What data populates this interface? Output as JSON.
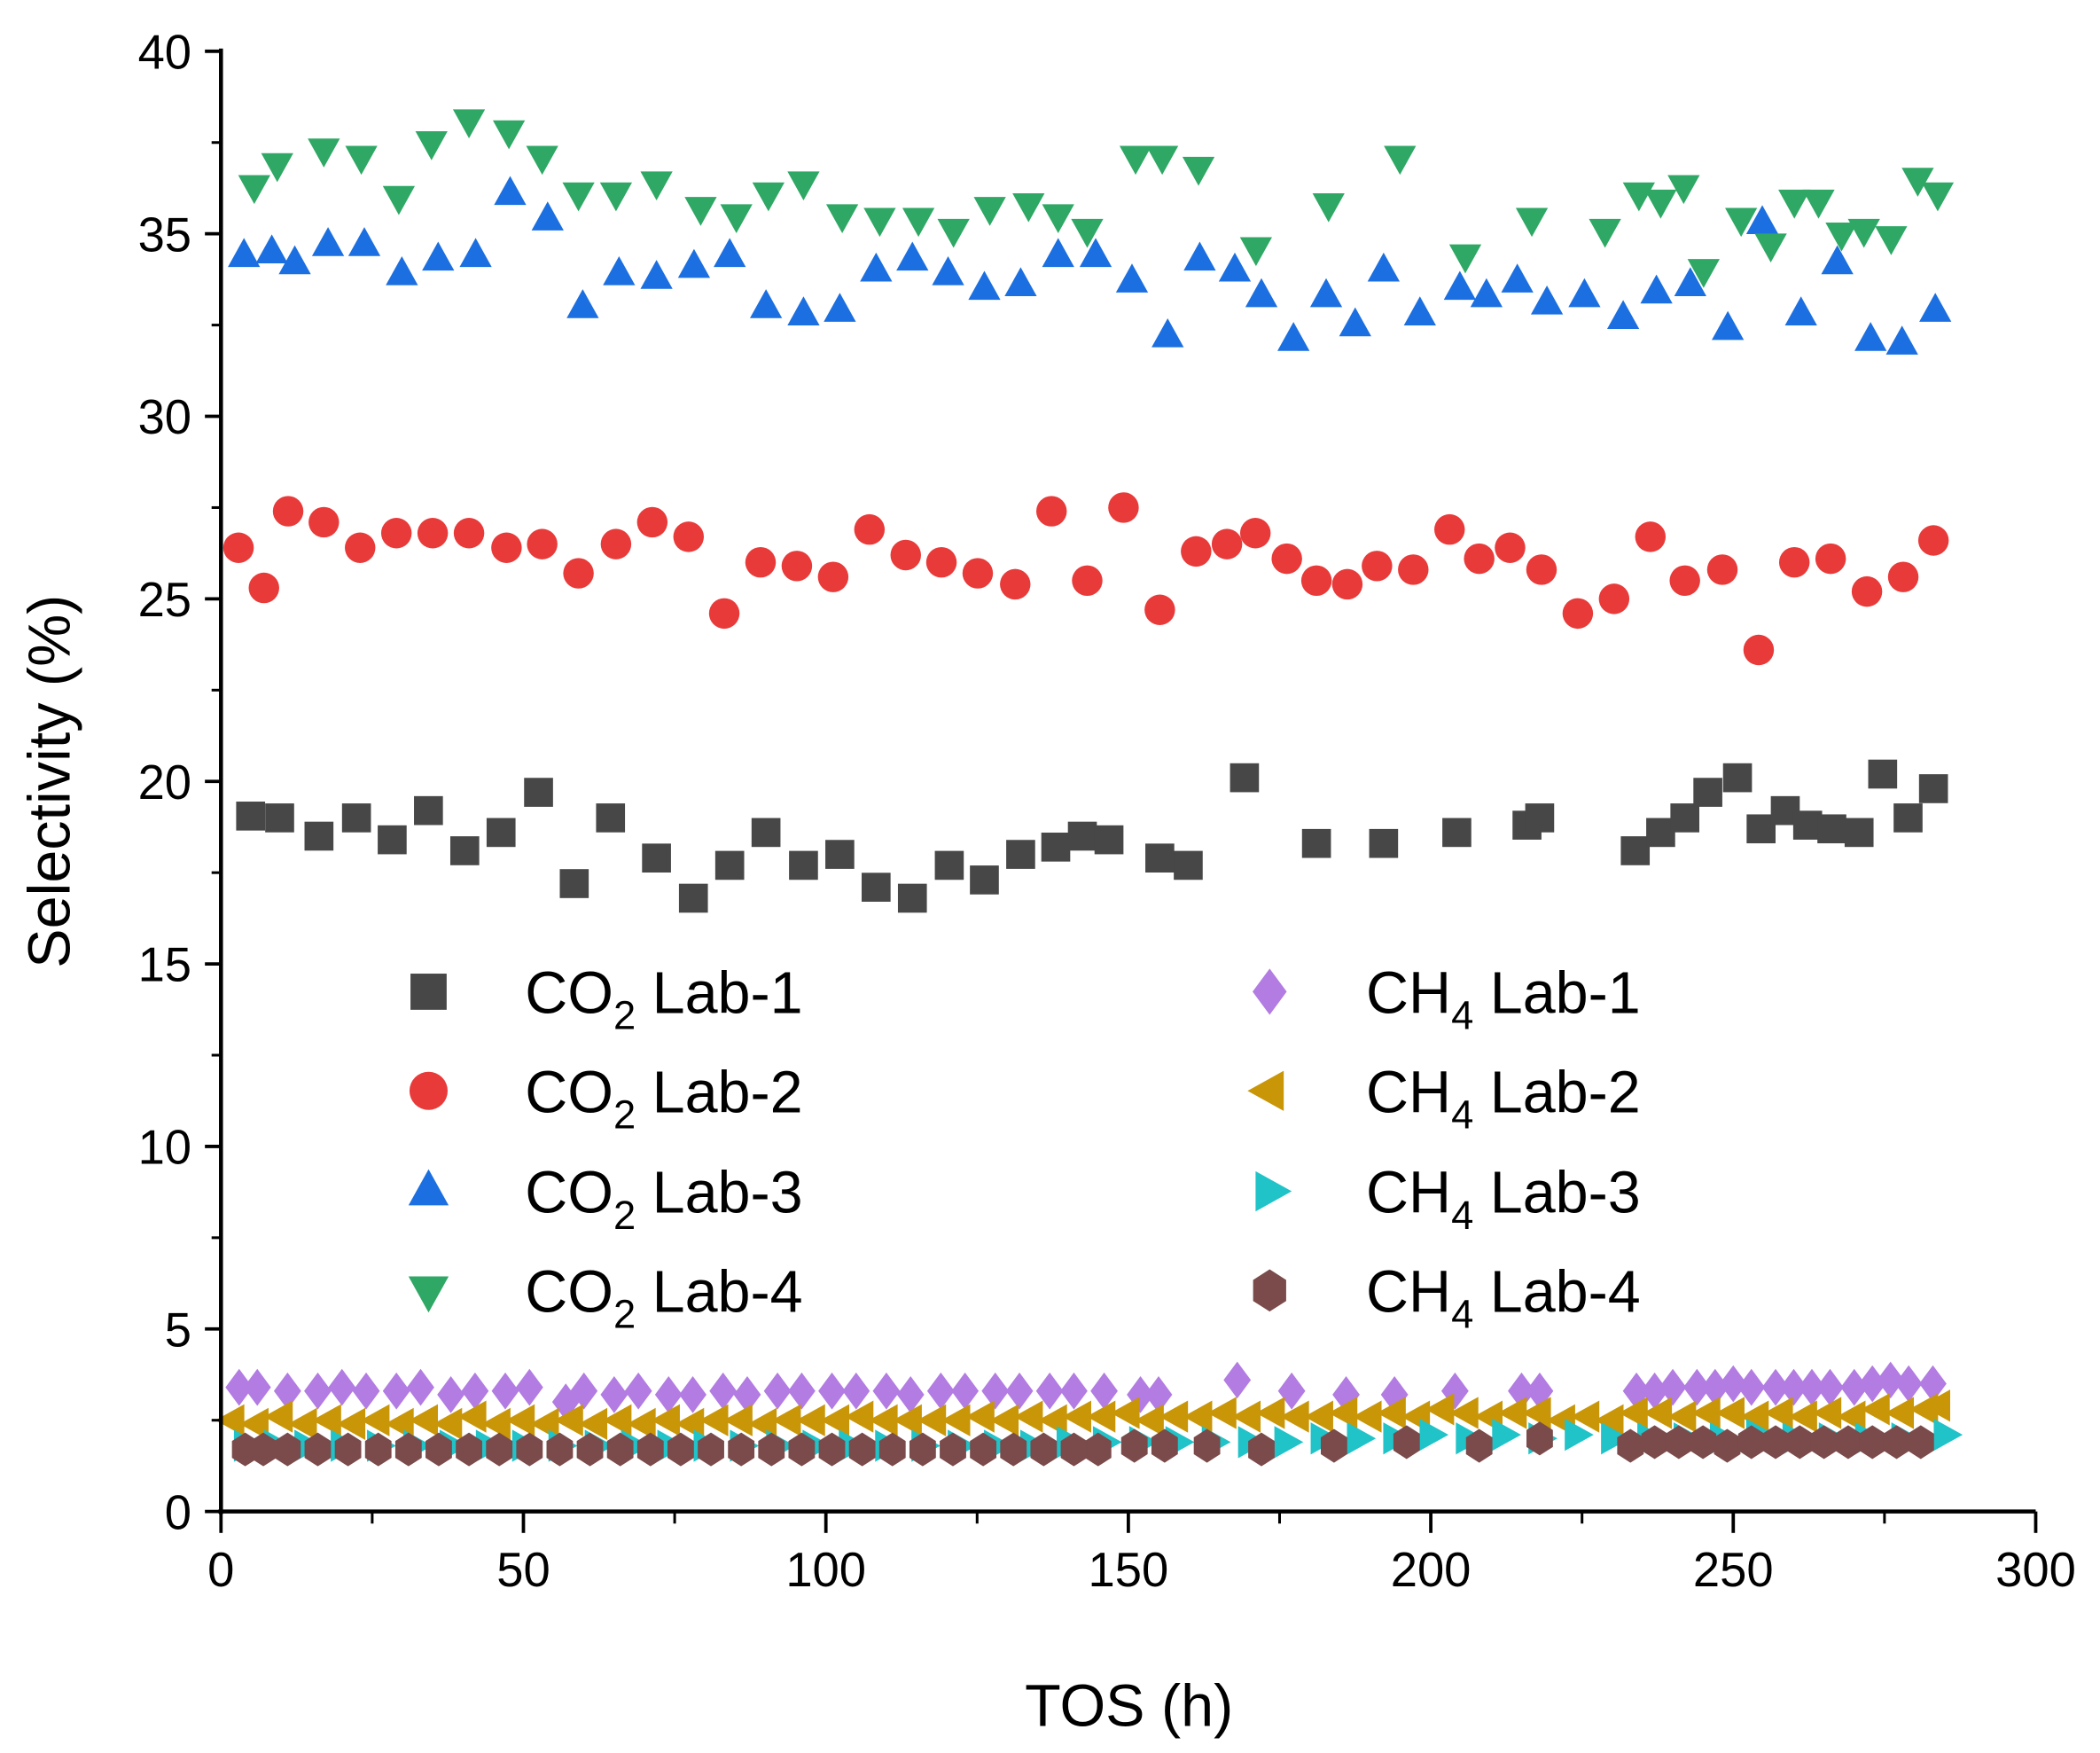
{
  "chart_data": {
    "type": "scatter",
    "title": "",
    "xlabel": "TOS (h)",
    "ylabel": "Selectivity (%)",
    "xlim": [
      0,
      300
    ],
    "ylim": [
      0,
      40
    ],
    "xticks": [
      "0",
      "50",
      "100",
      "150",
      "200",
      "250",
      "300"
    ],
    "yticks": [
      "0",
      "5",
      "10",
      "15",
      "20",
      "25",
      "30",
      "35",
      "40"
    ],
    "grid": false,
    "legend_placement": "center (two columns inside plot)",
    "series": [
      {
        "name": "CO2 Lab-1",
        "label_main": "CO",
        "label_sub": "2",
        "label_tail": " Lab-1",
        "marker": "square",
        "color": "#474747",
        "x": [
          4.9,
          9.7,
          16.2,
          22.4,
          28.3,
          34.3,
          40.3,
          46.3,
          52.5,
          58.4,
          64.4,
          72,
          78.1,
          84.1,
          90.1,
          96.3,
          102.3,
          108.3,
          114.3,
          120.4,
          126.2,
          132.2,
          138,
          142.4,
          146.8,
          155.2,
          159.9,
          169.2,
          181.1,
          192.2,
          204.3,
          215.9,
          218,
          233.8,
          238,
          242,
          245.8,
          250.7,
          254.6,
          258.6,
          262.3,
          266.3,
          270.8,
          274.7,
          278.9,
          283.1
        ],
        "y": [
          19.05,
          19.0,
          18.5,
          19.0,
          18.4,
          19.2,
          18.1,
          18.6,
          19.7,
          17.2,
          19.0,
          17.9,
          16.8,
          17.7,
          18.6,
          17.7,
          18.0,
          17.1,
          16.8,
          17.7,
          17.3,
          18.0,
          18.2,
          18.5,
          18.4,
          17.9,
          17.7,
          20.1,
          18.3,
          18.3,
          18.6,
          18.8,
          19.0,
          18.1,
          18.6,
          19.0,
          19.7,
          20.1,
          18.7,
          19.2,
          18.8,
          18.7,
          18.6,
          20.2,
          19.0,
          19.8
        ]
      },
      {
        "name": "CO2 Lab-2",
        "label_main": "CO",
        "label_sub": "2",
        "label_tail": " Lab-2",
        "marker": "circle",
        "color": "#e93a3a",
        "x": [
          2.9,
          7.1,
          11.1,
          17.0,
          23.0,
          29.0,
          35.0,
          41.0,
          47.2,
          53.1,
          59.1,
          65.3,
          71.3,
          77.3,
          83.2,
          89.2,
          95.2,
          101.2,
          107.2,
          113.2,
          119.1,
          125.1,
          131.3,
          137.3,
          143.2,
          149.2,
          155.2,
          161.2,
          166.3,
          171,
          176.2,
          181.1,
          186.2,
          191.1,
          197.1,
          203.1,
          208,
          213.1,
          218.3,
          224.3,
          230.3,
          236.3,
          242.0,
          248.2,
          254.2,
          260.1,
          266.1,
          272.1,
          278.1,
          283.1
        ],
        "y": [
          26.4,
          25.3,
          27.4,
          27.1,
          26.4,
          26.8,
          26.8,
          26.8,
          26.4,
          26.5,
          25.7,
          26.5,
          27.1,
          26.7,
          24.6,
          26.0,
          25.9,
          25.6,
          26.9,
          26.2,
          26.0,
          25.7,
          25.4,
          27.4,
          25.5,
          27.5,
          24.7,
          26.3,
          26.5,
          26.8,
          26.1,
          25.5,
          25.4,
          25.9,
          25.8,
          26.9,
          26.1,
          26.4,
          25.8,
          24.6,
          25.0,
          26.7,
          25.5,
          25.8,
          23.6,
          26.0,
          26.1,
          25.2,
          25.6,
          26.6
        ]
      },
      {
        "name": "CO2 Lab-3",
        "label_main": "CO",
        "label_sub": "2",
        "label_tail": " Lab-3",
        "marker": "triangle-up",
        "color": "#1b6fe0",
        "x": [
          3.8,
          8.4,
          12.2,
          17.7,
          23.7,
          29.9,
          35.9,
          42.1,
          47.8,
          54.0,
          59.8,
          65.8,
          72.0,
          78.2,
          84.1,
          90.1,
          96.3,
          102.3,
          108.3,
          114.3,
          120.2,
          126.2,
          132.2,
          138.4,
          144.6,
          150.6,
          156.5,
          161.8,
          167.6,
          172.0,
          177.3,
          182.7,
          187.5,
          192.2,
          198.2,
          204.8,
          209.2,
          214.3,
          219.2,
          225.4,
          231.8,
          237.3,
          242.9,
          249.1,
          254.8,
          261.2,
          267.2,
          272.7,
          277.9,
          283.4
        ],
        "y": [
          34.4,
          34.5,
          34.2,
          34.7,
          34.7,
          33.9,
          34.3,
          34.4,
          36.1,
          35.4,
          33.0,
          33.9,
          33.8,
          34.1,
          34.4,
          33.0,
          32.8,
          32.9,
          34.0,
          34.3,
          33.9,
          33.5,
          33.6,
          34.4,
          34.4,
          33.7,
          32.2,
          34.3,
          34.0,
          33.3,
          32.1,
          33.3,
          32.5,
          34.0,
          32.8,
          33.5,
          33.3,
          33.7,
          33.1,
          33.3,
          32.7,
          33.4,
          33.6,
          32.4,
          35.3,
          32.8,
          34.2,
          32.1,
          32.0,
          32.9
        ]
      },
      {
        "name": "CO2 Lab-4",
        "label_main": "CO",
        "label_sub": "2",
        "label_tail": " Lab-4",
        "marker": "triangle-down",
        "color": "#2ea864",
        "x": [
          5.5,
          9.3,
          17.0,
          23.2,
          29.4,
          34.8,
          41.0,
          47.6,
          53.1,
          59.1,
          65.3,
          72.0,
          79.3,
          85.2,
          90.5,
          96.3,
          102.7,
          108.9,
          115.3,
          121.1,
          127.1,
          133.5,
          138.4,
          143.2,
          151.2,
          155.6,
          161.6,
          171.1,
          183.1,
          194.9,
          205.7,
          216.7,
          228.8,
          234.4,
          238.0,
          241.8,
          245.1,
          251.3,
          256.2,
          260.1,
          264.1,
          267.9,
          271.6,
          276.1,
          280.5,
          283.8
        ],
        "y": [
          36.3,
          36.9,
          37.3,
          37.1,
          36.0,
          37.5,
          38.1,
          37.8,
          37.1,
          36.1,
          36.1,
          36.4,
          35.7,
          35.5,
          36.1,
          36.4,
          35.5,
          35.4,
          35.4,
          35.1,
          35.7,
          35.8,
          35.5,
          35.1,
          37.1,
          37.1,
          36.8,
          34.6,
          35.8,
          37.1,
          34.4,
          35.4,
          35.1,
          36.1,
          35.9,
          36.3,
          34.0,
          35.4,
          34.7,
          35.9,
          35.9,
          35.0,
          35.1,
          34.9,
          36.5,
          36.1
        ]
      },
      {
        "name": "CH4 Lab-1",
        "label_main": "CH",
        "label_sub": "4",
        "label_tail": " Lab-1",
        "marker": "diamond",
        "color": "#b27ce2",
        "x": [
          3,
          6,
          11,
          16,
          20,
          24,
          29,
          33,
          38,
          42,
          47,
          51,
          57,
          60,
          65,
          69,
          74,
          78,
          83,
          87,
          92,
          96,
          101,
          105,
          110,
          114,
          119,
          123,
          128,
          132,
          137,
          141,
          146,
          152,
          155,
          168,
          177,
          186,
          194,
          204,
          215,
          218,
          234,
          237,
          240,
          244,
          247,
          250,
          253,
          257,
          260,
          263,
          266,
          270,
          273,
          276,
          279,
          283
        ],
        "y": [
          3.4,
          3.4,
          3.3,
          3.3,
          3.4,
          3.3,
          3.3,
          3.4,
          3.2,
          3.3,
          3.3,
          3.4,
          3.0,
          3.3,
          3.2,
          3.3,
          3.2,
          3.2,
          3.3,
          3.2,
          3.3,
          3.3,
          3.3,
          3.3,
          3.3,
          3.2,
          3.3,
          3.3,
          3.3,
          3.3,
          3.3,
          3.3,
          3.3,
          3.2,
          3.2,
          3.6,
          3.3,
          3.2,
          3.2,
          3.3,
          3.3,
          3.3,
          3.3,
          3.3,
          3.4,
          3.4,
          3.4,
          3.5,
          3.4,
          3.4,
          3.4,
          3.4,
          3.4,
          3.4,
          3.5,
          3.6,
          3.5,
          3.5
        ]
      },
      {
        "name": "CH4 Lab-2",
        "label_main": "CH",
        "label_sub": "4",
        "label_tail": " Lab-2",
        "marker": "triangle-left",
        "color": "#c99608",
        "x": [
          2,
          6,
          10,
          14,
          18,
          22,
          26,
          30,
          34,
          38,
          42,
          46,
          50,
          54,
          58,
          62,
          66,
          70,
          74,
          78,
          82,
          86,
          90,
          94,
          98,
          102,
          106,
          110,
          114,
          118,
          122,
          126,
          130,
          134,
          138,
          142,
          146,
          150,
          154,
          158,
          162,
          166,
          170,
          174,
          178,
          182,
          186,
          190,
          194,
          198,
          202,
          206,
          210,
          214,
          218,
          222,
          226,
          230,
          234,
          238,
          242,
          246,
          250,
          254,
          258,
          262,
          266,
          270,
          274,
          278,
          282,
          284
        ],
        "y": [
          2.5,
          2.4,
          2.6,
          2.4,
          2.5,
          2.4,
          2.5,
          2.4,
          2.5,
          2.4,
          2.6,
          2.4,
          2.5,
          2.4,
          2.5,
          2.4,
          2.5,
          2.4,
          2.5,
          2.4,
          2.5,
          2.5,
          2.4,
          2.5,
          2.5,
          2.5,
          2.6,
          2.5,
          2.5,
          2.5,
          2.5,
          2.6,
          2.5,
          2.6,
          2.5,
          2.6,
          2.6,
          2.7,
          2.5,
          2.6,
          2.6,
          2.7,
          2.6,
          2.7,
          2.6,
          2.6,
          2.7,
          2.6,
          2.7,
          2.6,
          2.8,
          2.7,
          2.6,
          2.7,
          2.7,
          2.5,
          2.6,
          2.5,
          2.7,
          2.7,
          2.6,
          2.7,
          2.7,
          2.6,
          2.7,
          2.6,
          2.7,
          2.6,
          2.8,
          2.7,
          2.8,
          2.9
        ]
      },
      {
        "name": "CH4 Lab-3",
        "label_main": "CH",
        "label_sub": "4",
        "label_tail": " Lab-3",
        "marker": "triangle-right",
        "color": "#20c3c8",
        "x": [
          4,
          9,
          14,
          20,
          26,
          32,
          38,
          44,
          50,
          56,
          62,
          68,
          74,
          80,
          86,
          92,
          98,
          104,
          110,
          116,
          122,
          128,
          134,
          140,
          146,
          152,
          158,
          164,
          170,
          176,
          182,
          188,
          194,
          200,
          206,
          212,
          218,
          224,
          230,
          236,
          242,
          248,
          254,
          260,
          266,
          272,
          278,
          285
        ],
        "y": [
          1.8,
          1.8,
          1.8,
          1.8,
          1.8,
          1.8,
          1.8,
          1.8,
          1.8,
          1.8,
          1.8,
          1.8,
          1.8,
          1.8,
          1.8,
          1.8,
          1.8,
          1.8,
          1.8,
          1.8,
          1.8,
          1.8,
          1.8,
          1.9,
          1.9,
          1.9,
          1.9,
          1.9,
          1.9,
          1.9,
          2.0,
          2.0,
          2.0,
          2.1,
          2.0,
          2.1,
          2.0,
          2.1,
          2.0,
          2.0,
          2.0,
          2.0,
          2.1,
          2.0,
          2.0,
          2.0,
          2.0,
          2.1
        ]
      },
      {
        "name": "CH4 Lab-4",
        "label_main": "CH",
        "label_sub": "4",
        "label_tail": " Lab-4",
        "marker": "hexagon",
        "color": "#7b4b4b",
        "x": [
          4,
          7,
          11,
          16,
          21,
          26,
          31,
          36,
          41,
          46,
          51,
          56,
          61,
          66,
          71,
          76,
          81,
          86,
          91,
          96,
          101,
          106,
          111,
          116,
          121,
          126,
          131,
          136,
          141,
          145,
          151,
          156,
          163,
          172,
          184,
          196,
          208,
          218,
          233,
          237,
          241,
          245,
          249,
          253,
          257,
          261,
          265,
          269,
          273,
          277,
          281
        ],
        "y": [
          1.7,
          1.7,
          1.7,
          1.7,
          1.7,
          1.7,
          1.7,
          1.7,
          1.7,
          1.7,
          1.7,
          1.7,
          1.7,
          1.7,
          1.7,
          1.7,
          1.7,
          1.7,
          1.7,
          1.7,
          1.7,
          1.7,
          1.7,
          1.7,
          1.7,
          1.7,
          1.7,
          1.7,
          1.7,
          1.7,
          1.8,
          1.8,
          1.8,
          1.7,
          1.8,
          1.9,
          1.8,
          2.0,
          1.8,
          1.9,
          1.9,
          1.9,
          1.8,
          1.9,
          1.9,
          1.9,
          1.9,
          1.9,
          1.9,
          1.9,
          1.9
        ]
      }
    ]
  }
}
